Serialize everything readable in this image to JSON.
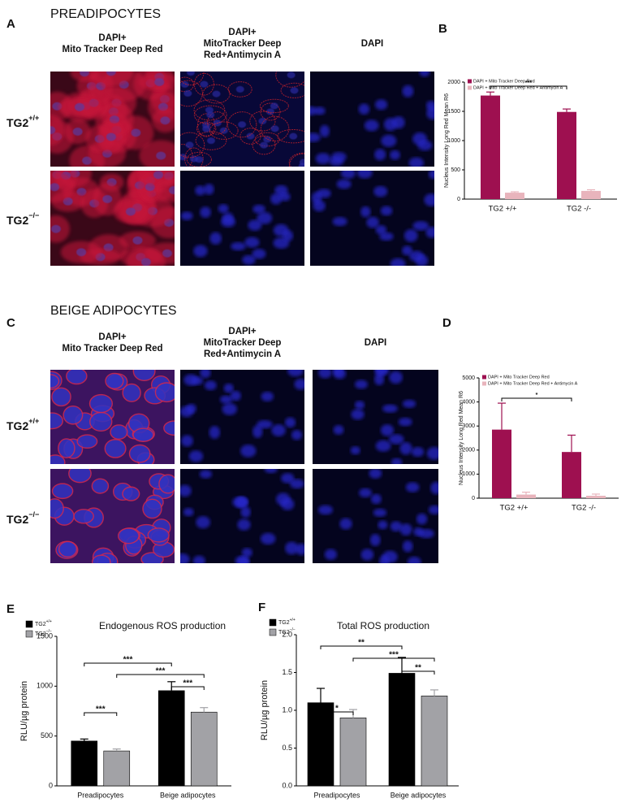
{
  "figure": {
    "panel_letters": [
      "A",
      "B",
      "C",
      "D",
      "E",
      "F"
    ],
    "sections": [
      {
        "heading": "PREADIPOCYTES",
        "columns": [
          [
            "DAPI+",
            "Mito Tracker Deep Red"
          ],
          [
            "DAPI+",
            "MitoTracker Deep",
            "Red+Antimycin  A"
          ],
          [
            "DAPI"
          ]
        ],
        "rows": [
          {
            "label": "TG2",
            "sup": "+/+"
          },
          {
            "label": "TG2",
            "sup": "−/−"
          }
        ]
      },
      {
        "heading": "BEIGE ADIPOCYTES",
        "columns": [
          [
            "DAPI+",
            "Mito Tracker Deep Red"
          ],
          [
            "DAPI+",
            "MitoTracker Deep",
            "Red+Antimycin  A"
          ],
          [
            "DAPI"
          ]
        ],
        "rows": [
          {
            "label": "TG2",
            "sup": "+/+"
          },
          {
            "label": "TG2",
            "sup": "−/−"
          }
        ]
      }
    ]
  },
  "chart_data": [
    {
      "type": "bar",
      "y_label": "Nucleus Intensity Long Red Mean R6",
      "categories": [
        "TG2 +/+",
        "TG2 -/-"
      ],
      "series": [
        {
          "name": "DAPI + Mito Tracker Deep Red",
          "color": "#9e1050",
          "values": [
            1770,
            1490
          ],
          "errors": [
            60,
            50
          ]
        },
        {
          "name": "DAPI + Mito Tracker Deep Red + Antimycin A",
          "color": "#e8b4bc",
          "values": [
            110,
            140
          ],
          "errors": [
            15,
            20
          ]
        }
      ],
      "ylim": [
        0,
        2000
      ],
      "yticks": [
        0,
        500,
        1000,
        1500,
        2000
      ],
      "annotations": [
        {
          "text": "***"
        }
      ]
    },
    {
      "type": "bar",
      "y_label": "Nucleus Intensity Long Red Mean R6",
      "categories": [
        "TG2 +/+",
        "TG2 -/-"
      ],
      "series": [
        {
          "name": "DAPI + Mito Tracker Deep Red",
          "color": "#9e1050",
          "values": [
            2850,
            1920
          ],
          "errors": [
            1100,
            700
          ]
        },
        {
          "name": "DAPI + Mito Tracker Deep Red + Antimycin A",
          "color": "#e8b4bc",
          "values": [
            150,
            100
          ],
          "errors": [
            100,
            70
          ]
        }
      ],
      "ylim": [
        0,
        5000
      ],
      "yticks": [
        0,
        1000,
        2000,
        3000,
        4000,
        5000
      ],
      "annotations": [
        {
          "text": "*"
        }
      ]
    },
    {
      "type": "bar",
      "title": "Endogenous ROS production",
      "y_label": "RLU/µg protein",
      "categories": [
        "Preadipocytes",
        "Beige adipocytes"
      ],
      "series": [
        {
          "name": "TG2",
          "name_sup": "+/+",
          "color": "#000000",
          "values": [
            450,
            955
          ],
          "errors": [
            20,
            90
          ]
        },
        {
          "name": "TG2",
          "name_sup": "−/−",
          "color": "#a2a2a6",
          "values": [
            350,
            740
          ],
          "errors": [
            20,
            45
          ]
        }
      ],
      "ylim": [
        0,
        1500
      ],
      "yticks": [
        0,
        500,
        1000,
        1500
      ],
      "annotations": [
        {
          "text": "***"
        },
        {
          "text": "***"
        },
        {
          "text": "***"
        },
        {
          "text": "***"
        }
      ]
    },
    {
      "type": "bar",
      "title": "Total ROS production",
      "y_label": "RLU/µg protein",
      "categories": [
        "Preadipocytes",
        "Beige adipocytes"
      ],
      "series": [
        {
          "name": "TG2",
          "name_sup": "+/+",
          "color": "#000000",
          "values": [
            1.1,
            1.49
          ],
          "errors": [
            0.19,
            0.21
          ]
        },
        {
          "name": "TG2",
          "name_sup": "−/−",
          "color": "#a2a2a6",
          "values": [
            0.9,
            1.19
          ],
          "errors": [
            0.11,
            0.08
          ]
        }
      ],
      "ylim": [
        0,
        2
      ],
      "yticks": [
        {
          "value": 0,
          "label": "0.0"
        },
        {
          "value": 0.5,
          "label": "0.5"
        },
        {
          "value": 1,
          "label": "1.0"
        },
        {
          "value": 1.5,
          "label": "1.5"
        },
        {
          "value": 2,
          "label": "2.0"
        }
      ],
      "annotations": [
        {
          "text": "*"
        },
        {
          "text": "**"
        },
        {
          "text": "***"
        },
        {
          "text": "**"
        }
      ]
    }
  ]
}
